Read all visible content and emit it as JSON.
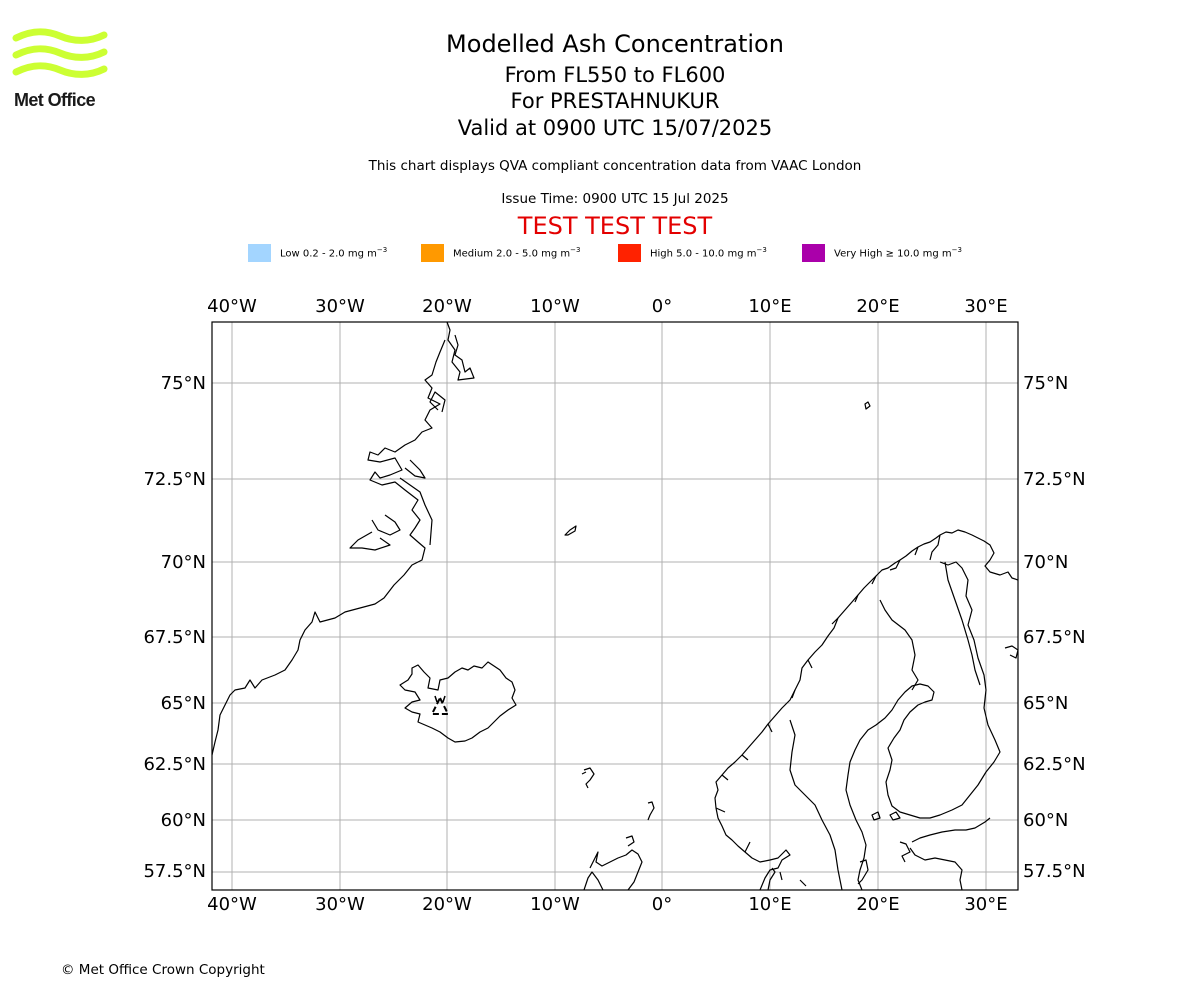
{
  "logo": {
    "text": "Met Office",
    "color": "#ccff33"
  },
  "titles": {
    "main": "Modelled Ash Concentration",
    "levels": "From FL550 to FL600",
    "volcano": "For PRESTAHNUKUR",
    "valid": "Valid at 0900 UTC 15/07/2025"
  },
  "subtitle": "This chart displays QVA compliant concentration data from VAAC London",
  "issue_time": "Issue Time: 0900 UTC 15 Jul 2025",
  "test_banner": "TEST TEST TEST",
  "legend": [
    {
      "label": "Low 0.2 - 2.0 mg m",
      "color": "#a3d5ff"
    },
    {
      "label": "Medium 2.0 - 5.0 mg m",
      "color": "#ff9900"
    },
    {
      "label": "High 5.0 - 10.0 mg m",
      "color": "#ff2200"
    },
    {
      "label": "Very High  ≥  10.0 mg m",
      "color": "#aa00aa"
    }
  ],
  "legend_exponent": "−3",
  "axes": {
    "lon_labels": [
      "40°W",
      "30°W",
      "20°W",
      "10°W",
      "0°",
      "10°E",
      "20°E",
      "30°E"
    ],
    "lat_labels": [
      "75°N",
      "72.5°N",
      "70°N",
      "67.5°N",
      "65°N",
      "62.5°N",
      "60°N",
      "57.5°N"
    ]
  },
  "copyright": "© Met Office Crown Copyright"
}
